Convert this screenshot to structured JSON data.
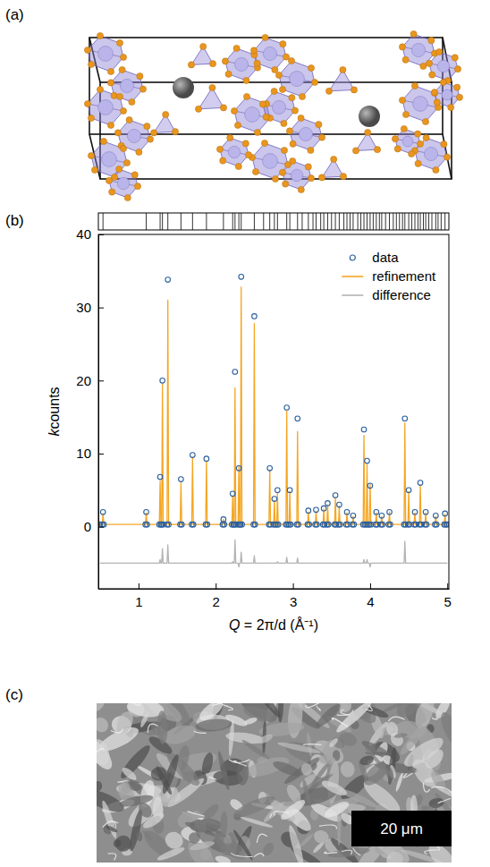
{
  "figure": {
    "panel_labels": [
      "(a)",
      "(b)",
      "(c)"
    ],
    "scale_bar": "20 μm"
  },
  "chart_data": {
    "type": "line",
    "x_label": "Q = 2π/d (Å⁻¹)",
    "y_label": "kcounts",
    "xlim": [
      0.48,
      5.02
    ],
    "xticks": [
      1,
      2,
      3,
      4,
      5
    ],
    "ylim": [
      -8.5,
      40
    ],
    "yticks": [
      0,
      10,
      20,
      30,
      40
    ],
    "legend": "upper right",
    "x": [
      0.5,
      0.53,
      0.54,
      0.55,
      1.09,
      1.1,
      1.11,
      1.27,
      1.28,
      1.29,
      1.3,
      1.31,
      1.32,
      1.37,
      1.38,
      1.39,
      1.54,
      1.55,
      1.56,
      1.69,
      1.7,
      1.71,
      1.87,
      1.88,
      1.89,
      2.09,
      2.1,
      2.11,
      2.21,
      2.22,
      2.23,
      2.24,
      2.25,
      2.26,
      2.29,
      2.3,
      2.31,
      2.32,
      2.33,
      2.34,
      2.49,
      2.5,
      2.51,
      2.69,
      2.7,
      2.71,
      2.75,
      2.76,
      2.77,
      2.79,
      2.8,
      2.81,
      2.91,
      2.92,
      2.93,
      2.95,
      2.96,
      2.97,
      3.05,
      3.06,
      3.07,
      3.19,
      3.2,
      3.21,
      3.29,
      3.3,
      3.31,
      3.39,
      3.4,
      3.41,
      3.44,
      3.45,
      3.46,
      3.54,
      3.55,
      3.56,
      3.59,
      3.6,
      3.61,
      3.69,
      3.7,
      3.71,
      3.77,
      3.78,
      3.79,
      3.91,
      3.92,
      3.93,
      3.95,
      3.96,
      3.97,
      3.99,
      4.0,
      4.01,
      4.07,
      4.08,
      4.09,
      4.14,
      4.15,
      4.16,
      4.24,
      4.25,
      4.26,
      4.44,
      4.45,
      4.46,
      4.49,
      4.5,
      4.51,
      4.57,
      4.58,
      4.59,
      4.64,
      4.65,
      4.66,
      4.71,
      4.72,
      4.73,
      4.84,
      4.85,
      4.86,
      4.96,
      4.97,
      4.98,
      5.0
    ],
    "series": [
      {
        "name": "data",
        "type": "scatter",
        "marker": "circle",
        "color": "#2a5f9e",
        "values": [
          0.3,
          0.3,
          2.0,
          0.3,
          0.3,
          2.0,
          0.3,
          0.3,
          6.8,
          0.3,
          0.3,
          20.0,
          0.3,
          0.3,
          33.8,
          0.3,
          0.3,
          6.5,
          0.3,
          0.3,
          9.8,
          0.3,
          0.3,
          9.3,
          0.3,
          0.3,
          1.0,
          0.3,
          0.3,
          4.5,
          0.3,
          0.3,
          21.2,
          0.3,
          0.3,
          8.0,
          0.3,
          0.3,
          34.2,
          0.3,
          0.3,
          28.8,
          0.3,
          0.3,
          8.0,
          0.3,
          0.3,
          3.8,
          0.3,
          0.3,
          5.0,
          0.3,
          0.3,
          16.3,
          0.3,
          0.3,
          5.0,
          0.3,
          0.3,
          14.8,
          0.3,
          0.3,
          2.2,
          0.3,
          0.3,
          2.3,
          0.3,
          0.3,
          2.5,
          0.3,
          0.3,
          3.2,
          0.3,
          0.3,
          4.3,
          0.3,
          0.3,
          3.0,
          0.3,
          0.3,
          2.0,
          0.3,
          0.3,
          1.5,
          0.3,
          0.3,
          13.3,
          0.3,
          0.3,
          9.0,
          0.3,
          0.3,
          5.6,
          0.3,
          0.3,
          2.0,
          0.3,
          0.3,
          1.5,
          0.3,
          0.3,
          2.0,
          0.3,
          0.3,
          14.8,
          0.3,
          0.3,
          5.0,
          0.3,
          0.3,
          2.0,
          0.3,
          0.3,
          6.0,
          0.3,
          0.3,
          2.0,
          0.3,
          0.3,
          1.5,
          0.3,
          0.3,
          1.8,
          0.3,
          0.3
        ]
      },
      {
        "name": "refinement",
        "type": "line",
        "color": "#f5a623",
        "values": [
          0.3,
          0.3,
          1.8,
          0.3,
          0.3,
          1.9,
          0.3,
          0.3,
          6.2,
          0.3,
          0.3,
          19.5,
          0.3,
          0.3,
          31.0,
          0.3,
          0.3,
          6.0,
          0.3,
          0.3,
          9.5,
          0.3,
          0.3,
          9.0,
          0.3,
          0.3,
          1.0,
          0.3,
          0.3,
          4.2,
          0.3,
          0.3,
          19.0,
          0.3,
          0.3,
          8.2,
          0.3,
          0.3,
          32.8,
          0.3,
          0.3,
          27.8,
          0.3,
          0.3,
          7.8,
          0.3,
          0.3,
          3.5,
          0.3,
          0.3,
          4.6,
          0.3,
          0.3,
          15.8,
          0.3,
          0.3,
          4.8,
          0.3,
          0.3,
          13.0,
          0.3,
          0.3,
          2.0,
          0.3,
          0.3,
          2.1,
          0.3,
          0.3,
          2.4,
          0.3,
          0.3,
          3.0,
          0.3,
          0.3,
          4.0,
          0.3,
          0.3,
          2.8,
          0.3,
          0.3,
          1.9,
          0.3,
          0.3,
          1.4,
          0.3,
          0.3,
          12.5,
          0.3,
          0.3,
          8.5,
          0.3,
          0.3,
          5.8,
          0.3,
          0.3,
          1.9,
          0.3,
          0.3,
          1.4,
          0.3,
          0.3,
          2.0,
          0.3,
          0.3,
          14.2,
          0.3,
          0.3,
          4.8,
          0.3,
          0.3,
          1.9,
          0.3,
          0.3,
          5.7,
          0.3,
          0.3,
          1.9,
          0.3,
          0.3,
          1.4,
          0.3,
          0.3,
          1.7,
          0.3,
          0.3
        ]
      },
      {
        "name": "difference",
        "type": "line",
        "color": "#b3b3b3",
        "values": [
          -5,
          -5,
          -5,
          -5,
          -5,
          -5,
          -5,
          -5,
          -4.5,
          -5,
          -5,
          -3,
          -5,
          -5,
          -2.5,
          -5,
          -5,
          -5,
          -5,
          -5,
          -5,
          -5,
          -5,
          -5,
          -5,
          -5,
          -5,
          -5,
          -5,
          -4.8,
          -5,
          -5,
          -1.8,
          -5,
          -5,
          -5.5,
          -5,
          -5,
          -3.5,
          -5,
          -5,
          -4,
          -5,
          -5,
          -5,
          -5,
          -5,
          -5,
          -5,
          -5,
          -4.8,
          -5,
          -5,
          -4.2,
          -5,
          -5,
          -5,
          -5,
          -5,
          -4.3,
          -5,
          -5,
          -5,
          -5,
          -5,
          -5,
          -5,
          -5,
          -5,
          -5,
          -5,
          -5,
          -5,
          -5,
          -5,
          -5,
          -5,
          -5,
          -5,
          -5,
          -5,
          -5,
          -5,
          -5,
          -5,
          -5,
          -4.5,
          -5,
          -5,
          -4.5,
          -5,
          -5,
          -5.5,
          -5,
          -5,
          -5,
          -5,
          -5,
          -5,
          -5,
          -5,
          -5,
          -5,
          -5,
          -2,
          -5,
          -5,
          -5,
          -5,
          -5,
          -5,
          -5,
          -5,
          -5,
          -5,
          -5,
          -5,
          -5,
          -5,
          -5,
          -5,
          -5,
          -5,
          -5,
          -5
        ]
      }
    ],
    "reflections": [
      0.54,
      1.1,
      1.28,
      1.31,
      1.38,
      1.55,
      1.7,
      1.88,
      2.1,
      2.22,
      2.25,
      2.3,
      2.33,
      2.5,
      2.62,
      2.7,
      2.76,
      2.8,
      2.92,
      2.96,
      3.06,
      3.12,
      3.2,
      3.26,
      3.3,
      3.36,
      3.4,
      3.45,
      3.5,
      3.55,
      3.6,
      3.66,
      3.7,
      3.74,
      3.78,
      3.84,
      3.88,
      3.92,
      3.96,
      4.0,
      4.04,
      4.08,
      4.12,
      4.15,
      4.2,
      4.25,
      4.3,
      4.34,
      4.38,
      4.42,
      4.45,
      4.5,
      4.54,
      4.58,
      4.62,
      4.65,
      4.69,
      4.72,
      4.76,
      4.8,
      4.85,
      4.88,
      4.92,
      4.97
    ]
  }
}
